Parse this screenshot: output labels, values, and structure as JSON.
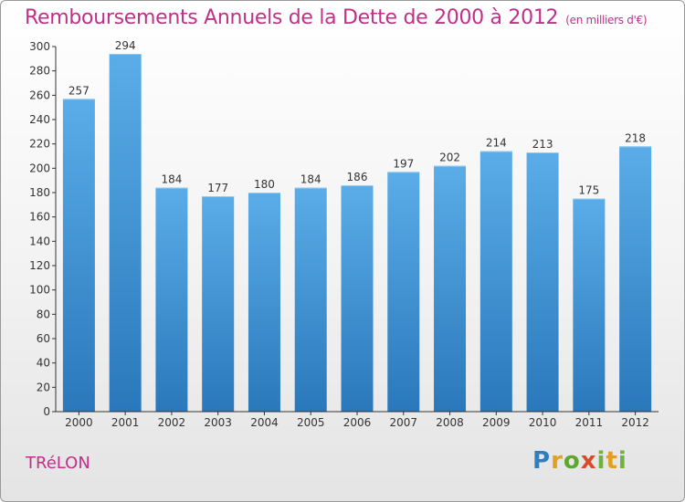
{
  "header": {
    "title": "Remboursements Annuels de la Dette de 2000 à 2012",
    "unit": "(en milliers d'€)"
  },
  "commune": "TRéLON",
  "logo": [
    "P",
    "r",
    "o",
    "x",
    "i",
    "t",
    "i"
  ],
  "colors": {
    "title": "#c0308a",
    "bar_top": "#5aade8",
    "bar_bottom": "#2a78bb",
    "axis": "#333333"
  },
  "chart_data": {
    "type": "bar",
    "title": "Remboursements Annuels de la Dette de 2000 à 2012",
    "xlabel": "",
    "ylabel": "",
    "categories": [
      "2000",
      "2001",
      "2002",
      "2003",
      "2004",
      "2005",
      "2006",
      "2007",
      "2008",
      "2009",
      "2010",
      "2011",
      "2012"
    ],
    "values": [
      257,
      294,
      184,
      177,
      180,
      184,
      186,
      197,
      202,
      214,
      213,
      175,
      218
    ],
    "ylim": [
      0,
      300
    ],
    "yticks": [
      0,
      20,
      40,
      60,
      80,
      100,
      120,
      140,
      160,
      180,
      200,
      220,
      240,
      260,
      280,
      300
    ],
    "grid": false,
    "data_labels": true
  }
}
